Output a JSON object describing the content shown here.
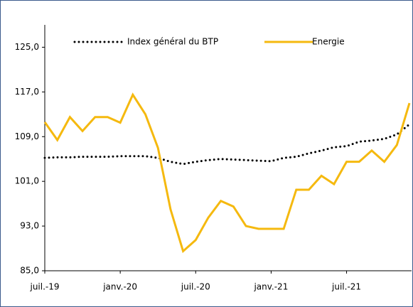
{
  "chart_data": {
    "type": "line",
    "categories": [
      "juil.-19",
      null,
      null,
      null,
      null,
      null,
      "janv.-20",
      null,
      null,
      null,
      null,
      null,
      "juil.-20",
      null,
      null,
      null,
      null,
      null,
      "janv.-21",
      null,
      null,
      null,
      null,
      null,
      "juil.-21",
      null,
      null,
      null,
      null,
      null
    ],
    "series": [
      {
        "name": "Index général du BTP",
        "color": "#000000",
        "style": "dotted",
        "values": [
          105.2,
          105.3,
          105.3,
          105.4,
          105.4,
          105.4,
          105.5,
          105.5,
          105.5,
          105.2,
          104.5,
          104.1,
          104.5,
          104.8,
          105,
          104.9,
          104.8,
          104.7,
          104.6,
          105.2,
          105.4,
          106,
          106.5,
          107.1,
          107.3,
          108.1,
          108.3,
          108.6,
          109.4,
          111.2
        ]
      },
      {
        "name": "Energie",
        "color": "#f5b90f",
        "style": "solid",
        "values": [
          111.6,
          108.4,
          112.5,
          110,
          112.5,
          112.5,
          111.5,
          116.5,
          113,
          107,
          96,
          88.5,
          90.5,
          94.5,
          97.5,
          96.5,
          93,
          92.5,
          92.5,
          92.5,
          99.5,
          99.5,
          102,
          100.5,
          104.5,
          104.5,
          106.5,
          104.5,
          107.5,
          115
        ]
      }
    ],
    "ylim": [
      85,
      129
    ],
    "yticks": [
      {
        "value": 85,
        "label": "85,0"
      },
      {
        "value": 93,
        "label": "93,0"
      },
      {
        "value": 101,
        "label": "101,0"
      },
      {
        "value": 109,
        "label": "109,0"
      },
      {
        "value": 117,
        "label": "117,0"
      },
      {
        "value": 125,
        "label": "125,0"
      }
    ],
    "grid": false,
    "legend": "top"
  }
}
